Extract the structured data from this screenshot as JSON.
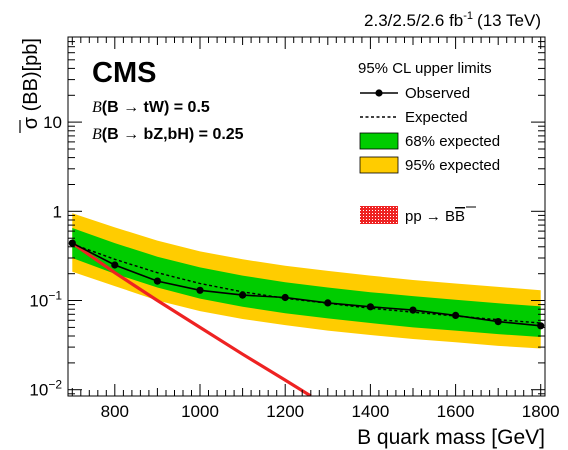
{
  "chart_data": {
    "type": "line",
    "experiment_label": "CMS",
    "lumi_label": "2.3/2.5/2.6 fb",
    "lumi_exponent": "-1",
    "energy_label": "(13 TeV)",
    "xlabel": "B quark mass [GeV]",
    "ylabel_prefix": "σ (B",
    "ylabel_bar": "B",
    "ylabel_suffix": ")[pb]",
    "xlim": [
      690,
      1810
    ],
    "ylim": [
      0.0085,
      90
    ],
    "yscale": "log",
    "x_ticks": [
      {
        "value": 800,
        "label": "800"
      },
      {
        "value": 1000,
        "label": "1000"
      },
      {
        "value": 1200,
        "label": "1200"
      },
      {
        "value": 1400,
        "label": "1400"
      },
      {
        "value": 1600,
        "label": "1600"
      },
      {
        "value": 1800,
        "label": "1800"
      }
    ],
    "y_ticks": [
      {
        "value": 0.01,
        "base": "10",
        "exp": "−2"
      },
      {
        "value": 0.1,
        "base": "10",
        "exp": "−1"
      },
      {
        "value": 1,
        "base": "1",
        "exp": ""
      },
      {
        "value": 10,
        "base": "10",
        "exp": ""
      }
    ],
    "branching_ratios": [
      {
        "symbol": "B",
        "text": "(B  → tW) = 0.5"
      },
      {
        "symbol": "B",
        "text": "(B  → bZ,bH) = 0.25"
      }
    ],
    "legend_header": "95% CL upper limits",
    "legend_placement": "top-right",
    "x": [
      700,
      800,
      900,
      1000,
      1100,
      1200,
      1300,
      1400,
      1500,
      1600,
      1700,
      1800
    ],
    "series": [
      {
        "name": "Observed",
        "style": "line-markers",
        "color": "#000000",
        "values": [
          0.44,
          0.25,
          0.165,
          0.13,
          0.115,
          0.108,
          0.094,
          0.085,
          0.078,
          0.068,
          0.058,
          0.052
        ]
      },
      {
        "name": "Expected",
        "style": "dashed",
        "color": "#000000",
        "values": [
          0.43,
          0.29,
          0.205,
          0.155,
          0.125,
          0.106,
          0.093,
          0.082,
          0.074,
          0.067,
          0.061,
          0.056
        ]
      },
      {
        "name": "68% expected",
        "style": "band",
        "color": "#00cc00",
        "lower": [
          0.3,
          0.2,
          0.14,
          0.105,
          0.085,
          0.072,
          0.063,
          0.056,
          0.05,
          0.046,
          0.042,
          0.039
        ],
        "upper": [
          0.65,
          0.44,
          0.31,
          0.235,
          0.19,
          0.16,
          0.14,
          0.124,
          0.112,
          0.102,
          0.093,
          0.086
        ]
      },
      {
        "name": "95% expected",
        "style": "band",
        "color": "#ffcc00",
        "lower": [
          0.21,
          0.145,
          0.1,
          0.076,
          0.062,
          0.053,
          0.046,
          0.041,
          0.037,
          0.034,
          0.031,
          0.029
        ],
        "upper": [
          0.95,
          0.66,
          0.47,
          0.355,
          0.29,
          0.245,
          0.215,
          0.19,
          0.17,
          0.155,
          0.142,
          0.13
        ]
      }
    ],
    "theory": {
      "name_prefix": "pp → B",
      "name_bar": "B",
      "color": "#ee2222",
      "x": [
        700,
        800,
        900,
        1000,
        1100,
        1200,
        1260
      ],
      "values": [
        0.44,
        0.205,
        0.1,
        0.05,
        0.025,
        0.0128,
        0.0085
      ]
    },
    "grid": false
  }
}
